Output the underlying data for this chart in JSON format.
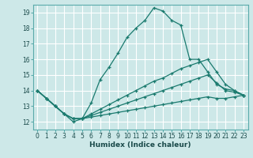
{
  "title": "",
  "xlabel": "Humidex (Indice chaleur)",
  "xlim": [
    -0.5,
    23.5
  ],
  "ylim": [
    11.5,
    19.5
  ],
  "xticks": [
    0,
    1,
    2,
    3,
    4,
    5,
    6,
    7,
    8,
    9,
    10,
    11,
    12,
    13,
    14,
    15,
    16,
    17,
    18,
    19,
    20,
    21,
    22,
    23
  ],
  "yticks": [
    12,
    13,
    14,
    15,
    16,
    17,
    18,
    19
  ],
  "bg_color": "#cde8e8",
  "grid_color": "#ffffff",
  "line_color": "#1a7a6e",
  "lines": [
    {
      "x": [
        0,
        1,
        2,
        3,
        4,
        5,
        6,
        7,
        8,
        9,
        10,
        11,
        12,
        13,
        14,
        15,
        16,
        17,
        18,
        19,
        20,
        21,
        22,
        23
      ],
      "y": [
        14.0,
        13.5,
        13.0,
        12.5,
        12.0,
        12.2,
        13.2,
        14.7,
        15.5,
        16.4,
        17.4,
        18.0,
        18.5,
        19.3,
        19.1,
        18.5,
        18.2,
        16.0,
        16.0,
        15.2,
        14.4,
        14.1,
        14.0,
        13.7
      ]
    },
    {
      "x": [
        0,
        1,
        2,
        3,
        4,
        5,
        6,
        7,
        8,
        9,
        10,
        11,
        12,
        13,
        14,
        15,
        16,
        17,
        18,
        19,
        20,
        21,
        22,
        23
      ],
      "y": [
        14.0,
        13.5,
        13.0,
        12.5,
        12.2,
        12.2,
        12.5,
        12.8,
        13.1,
        13.4,
        13.7,
        14.0,
        14.3,
        14.6,
        14.8,
        15.1,
        15.4,
        15.6,
        15.8,
        16.0,
        15.2,
        14.4,
        14.0,
        13.7
      ]
    },
    {
      "x": [
        0,
        1,
        2,
        3,
        4,
        5,
        6,
        7,
        8,
        9,
        10,
        11,
        12,
        13,
        14,
        15,
        16,
        17,
        18,
        19,
        20,
        21,
        22,
        23
      ],
      "y": [
        14.0,
        13.5,
        13.0,
        12.5,
        12.2,
        12.2,
        12.4,
        12.6,
        12.8,
        13.0,
        13.2,
        13.4,
        13.6,
        13.8,
        14.0,
        14.2,
        14.4,
        14.6,
        14.8,
        15.0,
        14.5,
        14.0,
        13.9,
        13.7
      ]
    },
    {
      "x": [
        0,
        1,
        2,
        3,
        4,
        5,
        6,
        7,
        8,
        9,
        10,
        11,
        12,
        13,
        14,
        15,
        16,
        17,
        18,
        19,
        20,
        21,
        22,
        23
      ],
      "y": [
        14.0,
        13.5,
        13.0,
        12.5,
        12.2,
        12.2,
        12.3,
        12.4,
        12.5,
        12.6,
        12.7,
        12.8,
        12.9,
        13.0,
        13.1,
        13.2,
        13.3,
        13.4,
        13.5,
        13.6,
        13.5,
        13.5,
        13.6,
        13.7
      ]
    }
  ]
}
